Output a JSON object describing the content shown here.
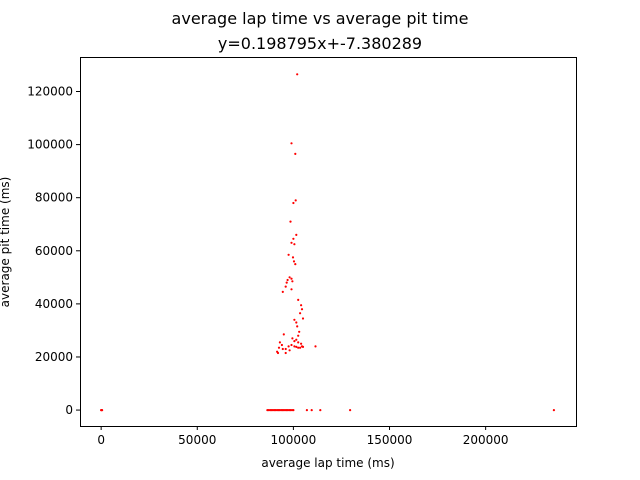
{
  "chart_data": {
    "type": "scatter",
    "title": "average lap time vs average pit time",
    "subtitle": "y=0.198795x+-7.380289",
    "xlabel": "average lap time (ms)",
    "ylabel": "average pit time (ms)",
    "xlim": [
      -11000,
      247000
    ],
    "ylim": [
      -6000,
      133000
    ],
    "xticks": [
      0,
      50000,
      100000,
      150000,
      200000
    ],
    "xtick_labels": [
      "0",
      "50000",
      "100000",
      "150000",
      "200000"
    ],
    "yticks": [
      0,
      20000,
      40000,
      60000,
      80000,
      100000,
      120000
    ],
    "ytick_labels": [
      "0",
      "20000",
      "40000",
      "60000",
      "80000",
      "100000",
      "120000"
    ],
    "grid": false,
    "marker_color": "#ff0000",
    "points": [
      {
        "x": 0,
        "y": 0
      },
      {
        "x": 300,
        "y": 0
      },
      {
        "x": 500,
        "y": 0
      },
      {
        "x": 86500,
        "y": 0
      },
      {
        "x": 87200,
        "y": 0
      },
      {
        "x": 88000,
        "y": 0
      },
      {
        "x": 88700,
        "y": 0
      },
      {
        "x": 89400,
        "y": 0
      },
      {
        "x": 90100,
        "y": 0
      },
      {
        "x": 90800,
        "y": 0
      },
      {
        "x": 91500,
        "y": 0
      },
      {
        "x": 92200,
        "y": 0
      },
      {
        "x": 92900,
        "y": 0
      },
      {
        "x": 93600,
        "y": 0
      },
      {
        "x": 94300,
        "y": 0
      },
      {
        "x": 95000,
        "y": 0
      },
      {
        "x": 95700,
        "y": 0
      },
      {
        "x": 96400,
        "y": 0
      },
      {
        "x": 97100,
        "y": 0
      },
      {
        "x": 97800,
        "y": 0
      },
      {
        "x": 98500,
        "y": 0
      },
      {
        "x": 99300,
        "y": 0
      },
      {
        "x": 100000,
        "y": 0
      },
      {
        "x": 107000,
        "y": 0
      },
      {
        "x": 109500,
        "y": 0
      },
      {
        "x": 114000,
        "y": 0
      },
      {
        "x": 129500,
        "y": 0
      },
      {
        "x": 235500,
        "y": 0
      },
      {
        "x": 102000,
        "y": 126500
      },
      {
        "x": 99000,
        "y": 100500
      },
      {
        "x": 101000,
        "y": 96500
      },
      {
        "x": 101200,
        "y": 79000
      },
      {
        "x": 100000,
        "y": 78000
      },
      {
        "x": 98500,
        "y": 71000
      },
      {
        "x": 101500,
        "y": 66000
      },
      {
        "x": 100000,
        "y": 64500
      },
      {
        "x": 99000,
        "y": 63000
      },
      {
        "x": 100500,
        "y": 62500
      },
      {
        "x": 97500,
        "y": 58500
      },
      {
        "x": 99800,
        "y": 57500
      },
      {
        "x": 100300,
        "y": 56000
      },
      {
        "x": 101000,
        "y": 55000
      },
      {
        "x": 98000,
        "y": 50000
      },
      {
        "x": 99000,
        "y": 49500
      },
      {
        "x": 97000,
        "y": 49000
      },
      {
        "x": 99500,
        "y": 48500
      },
      {
        "x": 96500,
        "y": 48000
      },
      {
        "x": 96000,
        "y": 46500
      },
      {
        "x": 99000,
        "y": 45500
      },
      {
        "x": 94500,
        "y": 44500
      },
      {
        "x": 102500,
        "y": 41500
      },
      {
        "x": 104000,
        "y": 39500
      },
      {
        "x": 104500,
        "y": 38000
      },
      {
        "x": 103500,
        "y": 36500
      },
      {
        "x": 105000,
        "y": 34500
      },
      {
        "x": 100500,
        "y": 34000
      },
      {
        "x": 101500,
        "y": 33000
      },
      {
        "x": 102000,
        "y": 31500
      },
      {
        "x": 103000,
        "y": 29500
      },
      {
        "x": 95000,
        "y": 28500
      },
      {
        "x": 102500,
        "y": 28000
      },
      {
        "x": 99500,
        "y": 27000
      },
      {
        "x": 93000,
        "y": 25500
      },
      {
        "x": 100500,
        "y": 26000
      },
      {
        "x": 101500,
        "y": 26500
      },
      {
        "x": 102500,
        "y": 25500
      },
      {
        "x": 104000,
        "y": 25000
      },
      {
        "x": 94000,
        "y": 24500
      },
      {
        "x": 97500,
        "y": 24000
      },
      {
        "x": 99000,
        "y": 24500
      },
      {
        "x": 100500,
        "y": 24000
      },
      {
        "x": 101500,
        "y": 23800
      },
      {
        "x": 102500,
        "y": 23500
      },
      {
        "x": 103500,
        "y": 23500
      },
      {
        "x": 104500,
        "y": 24000
      },
      {
        "x": 105000,
        "y": 23800
      },
      {
        "x": 111500,
        "y": 24000
      },
      {
        "x": 92500,
        "y": 23500
      },
      {
        "x": 94500,
        "y": 23000
      },
      {
        "x": 96000,
        "y": 23000
      },
      {
        "x": 98000,
        "y": 22500
      },
      {
        "x": 91500,
        "y": 22000
      },
      {
        "x": 92000,
        "y": 21500
      },
      {
        "x": 96000,
        "y": 21500
      }
    ]
  }
}
